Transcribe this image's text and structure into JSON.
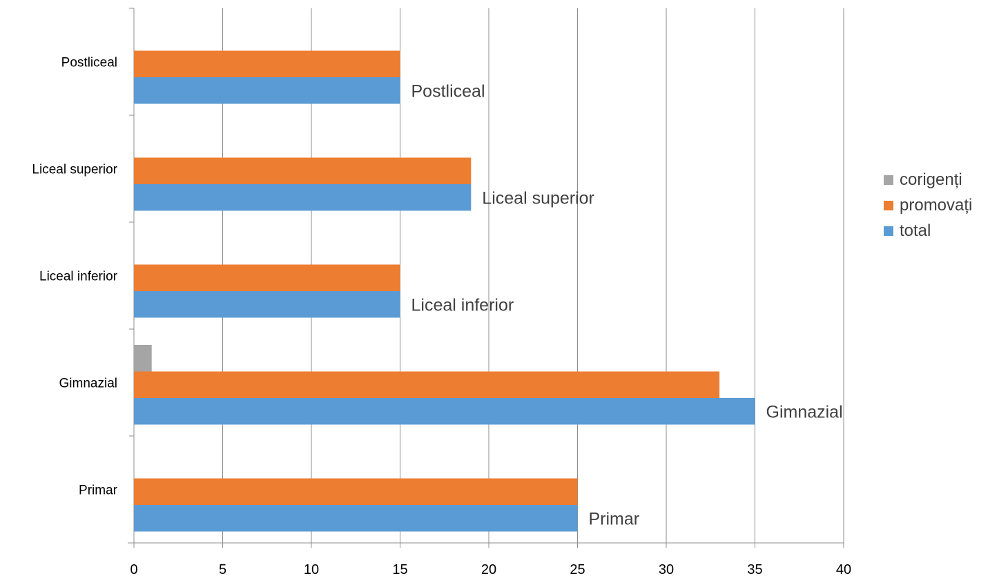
{
  "chart_data": {
    "type": "bar",
    "orientation": "horizontal",
    "categories": [
      "Primar",
      "Gimnazial",
      "Liceal inferior",
      "Liceal superior",
      "Postliceal"
    ],
    "series": [
      {
        "name": "total",
        "color": "#5b9bd5",
        "values": [
          25,
          35,
          15,
          19,
          15
        ]
      },
      {
        "name": "promovați",
        "color": "#ed7d31",
        "values": [
          25,
          33,
          15,
          19,
          15
        ]
      },
      {
        "name": "corigenți",
        "color": "#a5a5a5",
        "values": [
          0,
          1,
          0,
          0,
          0
        ]
      }
    ],
    "data_labels": [
      "Primar",
      "Gimnazial",
      "Liceal inferior",
      "Liceal superior",
      "Postliceal"
    ],
    "xlim": [
      0,
      40
    ],
    "x_ticks": [
      "0",
      "5",
      "10",
      "15",
      "20",
      "25",
      "30",
      "35",
      "40"
    ],
    "grid": "vertical",
    "legend_position": "right",
    "legend_order": [
      "corigenți",
      "promovați",
      "total"
    ]
  }
}
